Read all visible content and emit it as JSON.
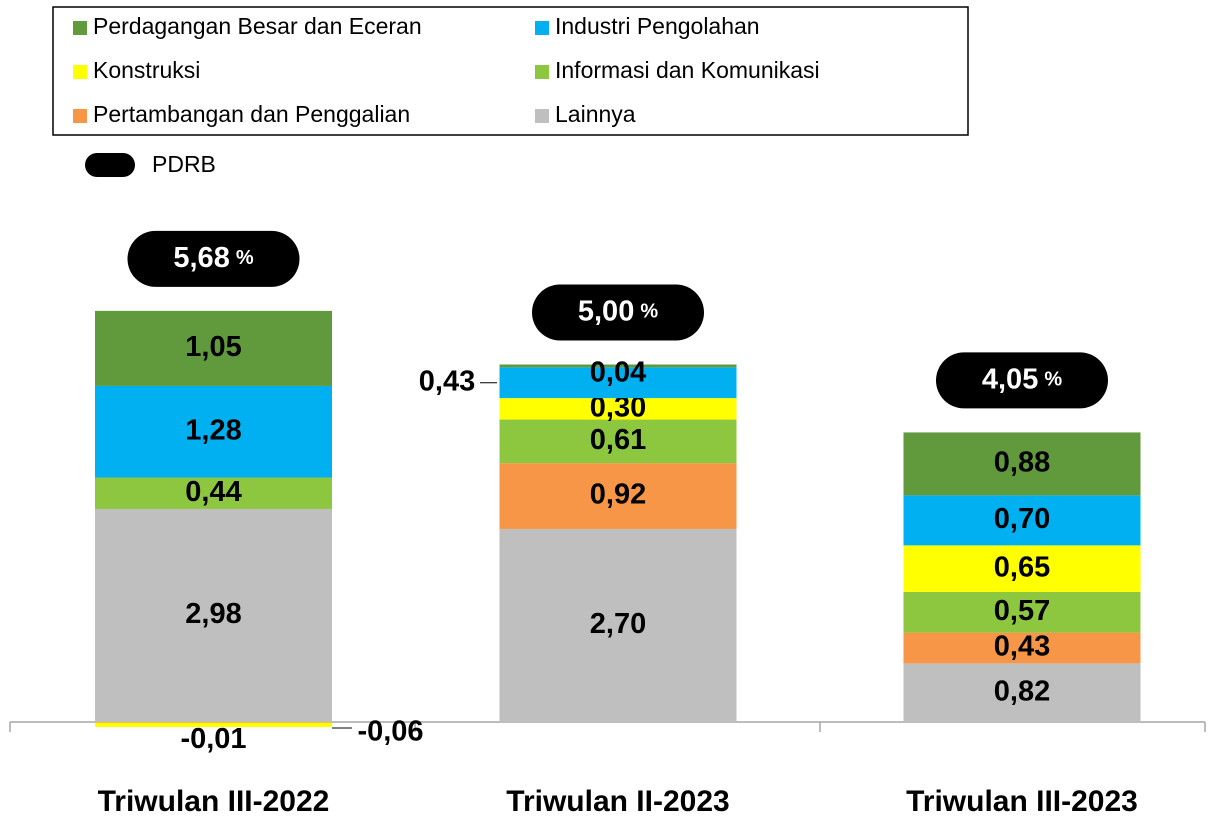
{
  "chart_data": {
    "type": "stacked_bar",
    "categories": [
      "Triwulan III-2022",
      "Triwulan II-2023",
      "Triwulan III-2023"
    ],
    "series": [
      {
        "name": "Perdagangan Besar dan Eceran",
        "color": "#609A3C",
        "values": [
          1.05,
          0.04,
          0.88
        ],
        "value_labels": [
          "1,05",
          "0,04",
          "0,88"
        ]
      },
      {
        "name": "Industri Pengolahan",
        "color": "#00B0F0",
        "values": [
          1.28,
          0.43,
          0.7
        ],
        "value_labels": [
          "1,28",
          "0,43",
          "0,70"
        ]
      },
      {
        "name": "Konstruksi",
        "color": "#FFFF00",
        "values": [
          -0.06,
          0.3,
          0.65
        ],
        "value_labels": [
          "-0,06",
          "0,30",
          "0,65"
        ]
      },
      {
        "name": "Informasi dan Komunikasi",
        "color": "#8DC63F",
        "values": [
          0.44,
          0.61,
          0.57
        ],
        "value_labels": [
          "0,44",
          "0,61",
          "0,57"
        ]
      },
      {
        "name": "Pertambangan dan Penggalian",
        "color": "#F79646",
        "values": [
          -0.01,
          0.92,
          0.43
        ],
        "value_labels": [
          "-0,01",
          "0,92",
          "0,43"
        ]
      },
      {
        "name": "Lainnya",
        "color": "#BFBFBF",
        "values": [
          2.98,
          2.7,
          0.82
        ],
        "value_labels": [
          "2,98",
          "2,70",
          "0,82"
        ]
      }
    ],
    "total": {
      "name": "PDRB",
      "color": "#000000",
      "values": [
        5.68,
        5.0,
        4.05
      ],
      "value_labels": [
        "5,68",
        "5,00",
        "4,05"
      ],
      "unit": "%"
    }
  }
}
